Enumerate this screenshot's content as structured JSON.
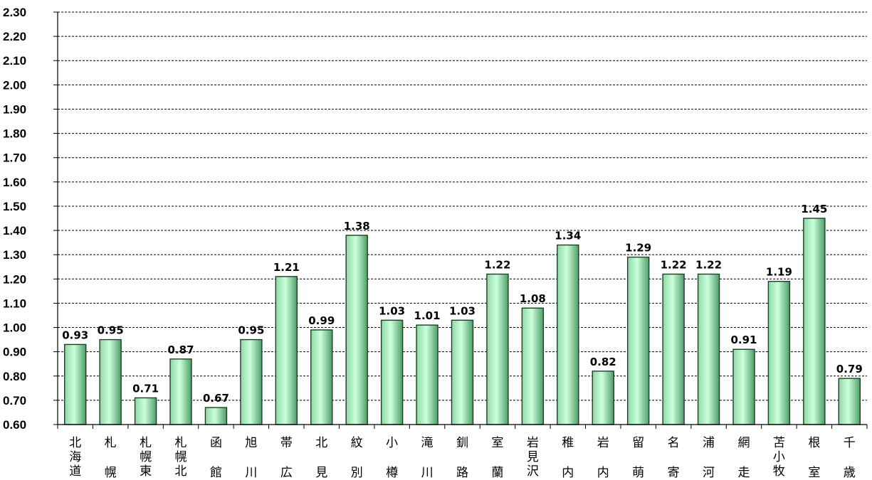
{
  "chart_data": {
    "type": "bar",
    "ylim": [
      0.6,
      2.3
    ],
    "ytick_step": 0.1,
    "yticks": [
      "0.60",
      "0.70",
      "0.80",
      "0.90",
      "1.00",
      "1.10",
      "1.20",
      "1.30",
      "1.40",
      "1.50",
      "1.60",
      "1.70",
      "1.80",
      "1.90",
      "2.00",
      "2.10",
      "2.20",
      "2.30"
    ],
    "grid": true,
    "categories": [
      "北海道",
      "札幌",
      "札幌東",
      "札幌北",
      "函館",
      "旭川",
      "帯広",
      "北見",
      "紋別",
      "小樽",
      "滝川",
      "釧路",
      "室蘭",
      "岩見沢",
      "稚内",
      "岩内",
      "留萌",
      "名寄",
      "浦河",
      "網走",
      "苫小牧",
      "根室",
      "千歳"
    ],
    "values": [
      0.93,
      0.95,
      0.71,
      0.87,
      0.67,
      0.95,
      1.21,
      0.99,
      1.38,
      1.03,
      1.01,
      1.03,
      1.22,
      1.08,
      1.34,
      0.82,
      1.29,
      1.22,
      1.22,
      0.91,
      1.19,
      1.45,
      0.79
    ],
    "data_labels": [
      "0.93",
      "0.95",
      "0.71",
      "0.87",
      "0.67",
      "0.95",
      "1.21",
      "0.99",
      "1.38",
      "1.03",
      "1.01",
      "1.03",
      "1.22",
      "1.08",
      "1.34",
      "0.82",
      "1.29",
      "1.22",
      "1.22",
      "0.91",
      "1.19",
      "1.45",
      "0.79"
    ],
    "colors": {
      "bar_light": "#ccffdd",
      "bar_mid": "#8ed9a4",
      "bar_dark": "#4e9e68",
      "bar_edge": "#1f3d28",
      "grid": "#000000",
      "axis": "#000000"
    }
  }
}
